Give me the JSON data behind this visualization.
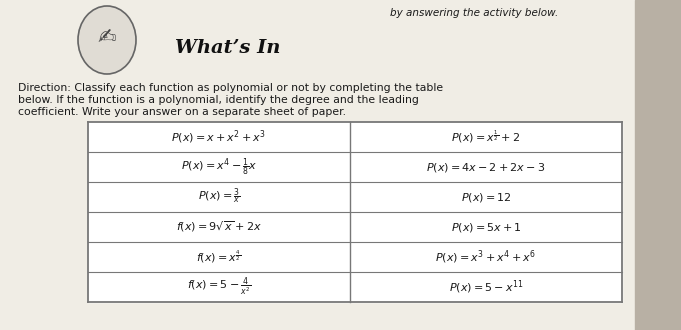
{
  "bg_color": "#ede9e0",
  "page_color": "#f0ede5",
  "right_shadow_color": "#b8b0a4",
  "title": "What’s In",
  "subtitle_top": "by answering the activity below.",
  "direction_line1": "Direction: Classify each function as polynomial or not by completing the table",
  "direction_line2": "below. If the function is a polynomial, identify the degree and the leading",
  "direction_line3": "coefficient. Write your answer on a separate sheet of paper.",
  "table_left": [
    "$P(x) = x + x^2 + x^3$",
    "$P(x) = x^4 - \\frac{1}{8}x$",
    "$P(x) = \\frac{3}{x}$",
    "$f(x) = 9\\sqrt{x} + 2x$",
    "$f(x) = x^{\\frac{4}{2}}$",
    "$f(x) = 5 - \\frac{4}{x^2}$"
  ],
  "table_right": [
    "$P(x) = x^{\\frac{1}{2}} + 2$",
    "$P(x) = 4x - 2 + 2x - 3$",
    "$P(x) = 12$",
    "$P(x) = 5x + 1$",
    "$P(x) = x^3 + x^4 + x^6$",
    "$P(x) = 5 - x^{11}$"
  ],
  "table_bg": "#ffffff",
  "table_line_color": "#777777",
  "text_color": "#1a1a1a",
  "title_color": "#111111",
  "circle_color": "#e0dcd4",
  "circle_border": "#666666"
}
